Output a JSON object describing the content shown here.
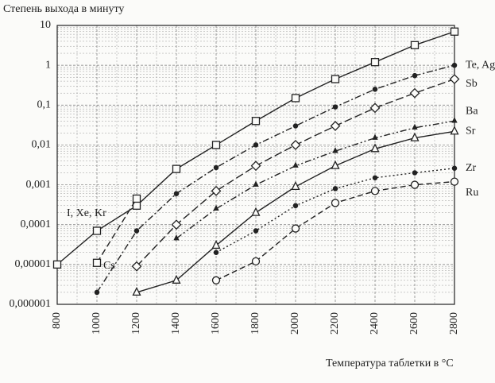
{
  "chart_data": {
    "type": "line",
    "y_label": "Степень выхода в минуту",
    "x_label": "Температура таблетки в °С",
    "x": [
      800,
      1000,
      1200,
      1400,
      1600,
      1800,
      2000,
      2200,
      2400,
      2600,
      2800
    ],
    "xlim": [
      800,
      2800
    ],
    "xticks": [
      800,
      1000,
      1200,
      1400,
      1600,
      1800,
      2000,
      2200,
      2400,
      2600,
      2800
    ],
    "ylim": [
      1e-06,
      10
    ],
    "yticks": [
      {
        "value": 1e-06,
        "label": "0,000001"
      },
      {
        "value": 1e-05,
        "label": "0,00001"
      },
      {
        "value": 0.0001,
        "label": "0,0001"
      },
      {
        "value": 0.001,
        "label": "0,001"
      },
      {
        "value": 0.01,
        "label": "0,01"
      },
      {
        "value": 0.1,
        "label": "0,1"
      },
      1,
      10
    ],
    "log_y": true,
    "grid": true,
    "series": [
      {
        "name": "I, Xe, Kr",
        "color": "#222",
        "dash": "solid",
        "marker": "square",
        "filled": false,
        "values": [
          1e-05,
          7e-05,
          0.0003,
          0.0025,
          0.01,
          0.04,
          0.15,
          0.45,
          1.2,
          3.2,
          7
        ]
      },
      {
        "name": "Cs",
        "color": "#222",
        "dash": "8 4",
        "marker": "square",
        "filled": false,
        "values": [
          null,
          1.1e-05,
          0.00045,
          null,
          null,
          null,
          null,
          null,
          null,
          null,
          null
        ]
      },
      {
        "name": "Te, Ag",
        "color": "#222",
        "dash": "8 3 2 3",
        "marker": "circle",
        "filled": true,
        "values": [
          null,
          2e-06,
          7e-05,
          0.0006,
          0.0027,
          0.01,
          0.03,
          0.09,
          0.25,
          0.55,
          1
        ]
      },
      {
        "name": "Sb",
        "color": "#222",
        "dash": "10 4",
        "marker": "diamond",
        "filled": false,
        "values": [
          null,
          null,
          9e-06,
          0.0001,
          0.0007,
          0.003,
          0.01,
          0.03,
          0.085,
          0.2,
          0.45
        ]
      },
      {
        "name": "Ba",
        "color": "#222",
        "dash": "8 3 2 3 2 3",
        "marker": "triangle",
        "filled": true,
        "values": [
          null,
          null,
          null,
          4.5e-05,
          0.00025,
          0.001,
          0.003,
          0.007,
          0.015,
          0.027,
          0.04
        ]
      },
      {
        "name": "Sr",
        "color": "#222",
        "dash": "solid",
        "marker": "triangle",
        "filled": false,
        "values": [
          null,
          null,
          2e-06,
          4e-06,
          3e-05,
          0.0002,
          0.0009,
          0.003,
          0.008,
          0.015,
          0.022
        ]
      },
      {
        "name": "Zr",
        "color": "#222",
        "dash": "2 3",
        "marker": "circle",
        "filled": true,
        "values": [
          null,
          null,
          null,
          null,
          2e-05,
          7e-05,
          0.0003,
          0.0008,
          0.0015,
          0.002,
          0.0026
        ]
      },
      {
        "name": "Ru",
        "color": "#222",
        "dash": "7 4",
        "marker": "circle",
        "filled": false,
        "values": [
          null,
          null,
          null,
          null,
          4e-06,
          1.2e-05,
          8e-05,
          0.00035,
          0.0007,
          0.001,
          0.0012
        ]
      }
    ]
  }
}
